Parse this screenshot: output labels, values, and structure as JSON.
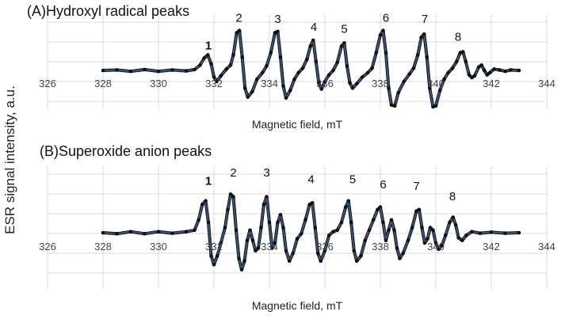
{
  "y_axis_label": "ESR signal intensity, a.u.",
  "chart_data": [
    {
      "type": "line",
      "title": "(A)Hydroxyl radical peaks",
      "xlabel": "Magnetic field, mT",
      "ylabel": "ESR signal intensity, a.u.",
      "xlim": [
        326,
        344
      ],
      "x_ticks": [
        "326",
        "328",
        "330",
        "332",
        "334",
        "336",
        "338",
        "340",
        "342",
        "344"
      ],
      "grid": true,
      "baseline": 0,
      "series_colors": [
        "#111111",
        "#3d5f8f"
      ],
      "peak_labels": [
        {
          "text": "1",
          "x": 331.8,
          "y": 0.4
        },
        {
          "text": "2",
          "x": 332.9,
          "y": 1.03
        },
        {
          "text": "3",
          "x": 334.3,
          "y": 1.0
        },
        {
          "text": "4",
          "x": 335.6,
          "y": 0.82
        },
        {
          "text": "5",
          "x": 336.7,
          "y": 0.78
        },
        {
          "text": "6",
          "x": 338.2,
          "y": 1.03
        },
        {
          "text": "7",
          "x": 339.6,
          "y": 1.0
        },
        {
          "text": "8",
          "x": 340.8,
          "y": 0.6
        }
      ],
      "points": [
        [
          328.0,
          0.0
        ],
        [
          328.5,
          0.01
        ],
        [
          329.0,
          -0.02
        ],
        [
          329.5,
          0.02
        ],
        [
          330.0,
          -0.02
        ],
        [
          330.5,
          0.01
        ],
        [
          331.0,
          -0.01
        ],
        [
          331.3,
          0.02
        ],
        [
          331.5,
          0.12
        ],
        [
          331.65,
          0.28
        ],
        [
          331.78,
          0.35
        ],
        [
          331.9,
          0.15
        ],
        [
          332.0,
          -0.15
        ],
        [
          332.1,
          -0.25
        ],
        [
          332.25,
          -0.12
        ],
        [
          332.45,
          0.03
        ],
        [
          332.6,
          0.12
        ],
        [
          332.7,
          0.35
        ],
        [
          332.82,
          0.85
        ],
        [
          332.92,
          0.9
        ],
        [
          333.02,
          0.3
        ],
        [
          333.12,
          -0.4
        ],
        [
          333.22,
          -0.6
        ],
        [
          333.38,
          -0.48
        ],
        [
          333.55,
          -0.2
        ],
        [
          333.75,
          -0.05
        ],
        [
          333.9,
          0.1
        ],
        [
          334.05,
          0.4
        ],
        [
          334.2,
          0.85
        ],
        [
          334.3,
          0.88
        ],
        [
          334.4,
          0.3
        ],
        [
          334.5,
          -0.35
        ],
        [
          334.6,
          -0.62
        ],
        [
          334.75,
          -0.45
        ],
        [
          334.9,
          -0.2
        ],
        [
          335.05,
          -0.05
        ],
        [
          335.2,
          0.05
        ],
        [
          335.35,
          0.25
        ],
        [
          335.48,
          0.55
        ],
        [
          335.58,
          0.68
        ],
        [
          335.68,
          0.2
        ],
        [
          335.78,
          -0.28
        ],
        [
          335.88,
          -0.42
        ],
        [
          336.0,
          -0.25
        ],
        [
          336.15,
          -0.1
        ],
        [
          336.3,
          0.0
        ],
        [
          336.45,
          0.18
        ],
        [
          336.6,
          0.55
        ],
        [
          336.7,
          0.62
        ],
        [
          336.8,
          0.1
        ],
        [
          336.9,
          -0.28
        ],
        [
          337.0,
          -0.4
        ],
        [
          337.15,
          -0.3
        ],
        [
          337.35,
          -0.15
        ],
        [
          337.55,
          -0.05
        ],
        [
          337.7,
          0.05
        ],
        [
          337.85,
          0.4
        ],
        [
          338.0,
          0.8
        ],
        [
          338.1,
          0.9
        ],
        [
          338.2,
          0.4
        ],
        [
          338.3,
          -0.4
        ],
        [
          338.4,
          -0.78
        ],
        [
          338.52,
          -0.8
        ],
        [
          338.65,
          -0.5
        ],
        [
          338.85,
          -0.25
        ],
        [
          339.05,
          -0.08
        ],
        [
          339.2,
          0.05
        ],
        [
          339.35,
          0.35
        ],
        [
          339.48,
          0.75
        ],
        [
          339.58,
          0.82
        ],
        [
          339.68,
          0.3
        ],
        [
          339.78,
          -0.4
        ],
        [
          339.9,
          -0.82
        ],
        [
          340.0,
          -0.8
        ],
        [
          340.15,
          -0.45
        ],
        [
          340.3,
          -0.2
        ],
        [
          340.45,
          -0.05
        ],
        [
          340.6,
          0.05
        ],
        [
          340.75,
          0.2
        ],
        [
          340.88,
          0.4
        ],
        [
          340.98,
          0.42
        ],
        [
          341.08,
          0.2
        ],
        [
          341.2,
          -0.1
        ],
        [
          341.3,
          -0.16
        ],
        [
          341.4,
          -0.12
        ],
        [
          341.55,
          0.08
        ],
        [
          341.65,
          0.12
        ],
        [
          341.75,
          0.0
        ],
        [
          341.85,
          -0.1
        ],
        [
          341.95,
          -0.05
        ],
        [
          342.1,
          0.03
        ],
        [
          342.3,
          0.01
        ],
        [
          342.5,
          -0.02
        ],
        [
          342.7,
          0.01
        ],
        [
          343.0,
          0.0
        ]
      ]
    },
    {
      "type": "line",
      "title": "(B)Superoxide anion peaks",
      "xlabel": "Magnetic field, mT",
      "ylabel": "ESR signal intensity, a.u.",
      "xlim": [
        326,
        344
      ],
      "x_ticks": [
        "326",
        "328",
        "330",
        "332",
        "334",
        "336",
        "338",
        "340",
        "342",
        "344"
      ],
      "grid": true,
      "baseline": 0,
      "series_colors": [
        "#111111",
        "#3d5f8f"
      ],
      "peak_labels": [
        {
          "text": "1",
          "x": 331.8,
          "y": 0.87
        },
        {
          "text": "2",
          "x": 332.7,
          "y": 1.03
        },
        {
          "text": "3",
          "x": 333.9,
          "y": 1.03
        },
        {
          "text": "4",
          "x": 335.5,
          "y": 0.9
        },
        {
          "text": "5",
          "x": 337.0,
          "y": 0.9
        },
        {
          "text": "6",
          "x": 338.1,
          "y": 0.8
        },
        {
          "text": "7",
          "x": 339.3,
          "y": 0.77
        },
        {
          "text": "8",
          "x": 340.6,
          "y": 0.57
        }
      ],
      "points": [
        [
          328.0,
          0.0
        ],
        [
          328.5,
          -0.02
        ],
        [
          329.0,
          0.02
        ],
        [
          329.5,
          -0.02
        ],
        [
          330.0,
          0.02
        ],
        [
          330.5,
          -0.01
        ],
        [
          331.0,
          0.02
        ],
        [
          331.3,
          0.05
        ],
        [
          331.45,
          0.25
        ],
        [
          331.58,
          0.55
        ],
        [
          331.7,
          0.62
        ],
        [
          331.8,
          0.2
        ],
        [
          331.9,
          -0.45
        ],
        [
          332.0,
          -0.62
        ],
        [
          332.12,
          -0.45
        ],
        [
          332.25,
          -0.2
        ],
        [
          332.4,
          0.1
        ],
        [
          332.5,
          0.45
        ],
        [
          332.6,
          0.75
        ],
        [
          332.7,
          0.7
        ],
        [
          332.8,
          0.05
        ],
        [
          332.9,
          -0.5
        ],
        [
          333.0,
          -0.72
        ],
        [
          333.1,
          -0.55
        ],
        [
          333.2,
          -0.15
        ],
        [
          333.3,
          0.05
        ],
        [
          333.4,
          -0.15
        ],
        [
          333.5,
          -0.35
        ],
        [
          333.6,
          -0.3
        ],
        [
          333.7,
          0.1
        ],
        [
          333.8,
          0.55
        ],
        [
          333.9,
          0.7
        ],
        [
          334.0,
          0.2
        ],
        [
          334.1,
          -0.3
        ],
        [
          334.2,
          -0.2
        ],
        [
          334.3,
          0.2
        ],
        [
          334.4,
          0.35
        ],
        [
          334.5,
          0.1
        ],
        [
          334.6,
          -0.35
        ],
        [
          334.72,
          -0.55
        ],
        [
          334.85,
          -0.4
        ],
        [
          335.0,
          -0.12
        ],
        [
          335.15,
          -0.02
        ],
        [
          335.3,
          0.25
        ],
        [
          335.45,
          0.55
        ],
        [
          335.55,
          0.58
        ],
        [
          335.65,
          0.1
        ],
        [
          335.75,
          -0.4
        ],
        [
          335.85,
          -0.55
        ],
        [
          336.0,
          -0.35
        ],
        [
          336.15,
          -0.05
        ],
        [
          336.3,
          0.02
        ],
        [
          336.45,
          0.05
        ],
        [
          336.6,
          0.2
        ],
        [
          336.75,
          0.5
        ],
        [
          336.85,
          0.62
        ],
        [
          336.95,
          0.2
        ],
        [
          337.05,
          -0.35
        ],
        [
          337.15,
          -0.55
        ],
        [
          337.3,
          -0.45
        ],
        [
          337.45,
          -0.15
        ],
        [
          337.6,
          0.05
        ],
        [
          337.75,
          0.25
        ],
        [
          337.9,
          0.45
        ],
        [
          338.0,
          0.5
        ],
        [
          338.1,
          0.2
        ],
        [
          338.2,
          -0.15
        ],
        [
          338.3,
          0.05
        ],
        [
          338.4,
          0.25
        ],
        [
          338.5,
          0.05
        ],
        [
          338.6,
          -0.3
        ],
        [
          338.7,
          -0.5
        ],
        [
          338.82,
          -0.4
        ],
        [
          339.0,
          -0.15
        ],
        [
          339.15,
          0.1
        ],
        [
          339.3,
          0.42
        ],
        [
          339.4,
          0.45
        ],
        [
          339.5,
          0.1
        ],
        [
          339.6,
          -0.2
        ],
        [
          339.7,
          -0.12
        ],
        [
          339.8,
          0.1
        ],
        [
          339.9,
          0.05
        ],
        [
          340.0,
          -0.2
        ],
        [
          340.1,
          -0.32
        ],
        [
          340.22,
          -0.25
        ],
        [
          340.35,
          -0.05
        ],
        [
          340.5,
          0.2
        ],
        [
          340.62,
          0.3
        ],
        [
          340.72,
          0.15
        ],
        [
          340.82,
          -0.1
        ],
        [
          340.95,
          -0.15
        ],
        [
          341.1,
          -0.05
        ],
        [
          341.3,
          0.02
        ],
        [
          341.6,
          -0.01
        ],
        [
          342.0,
          0.01
        ],
        [
          342.5,
          -0.01
        ],
        [
          343.0,
          0.0
        ]
      ]
    }
  ]
}
